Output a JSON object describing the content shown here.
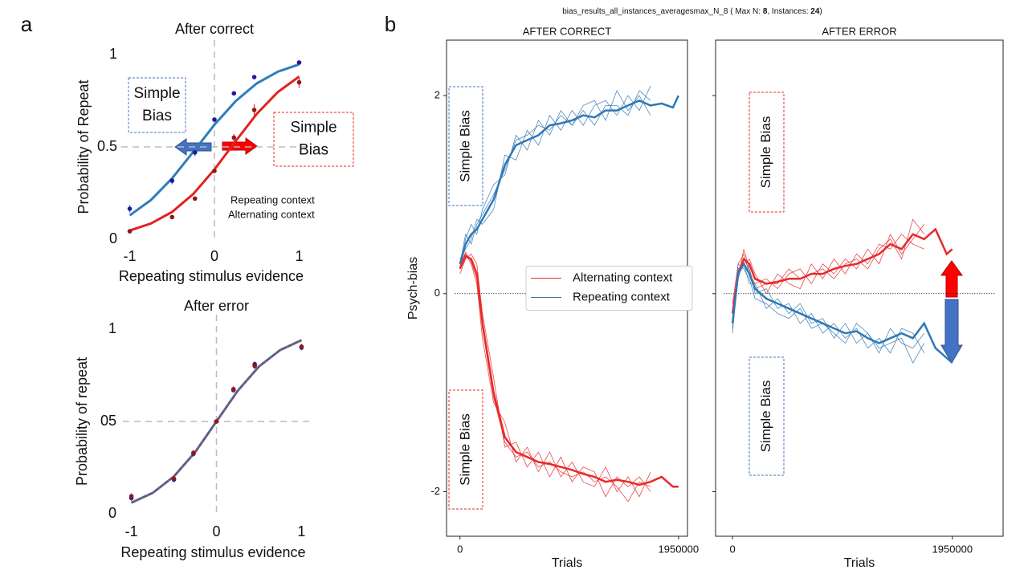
{
  "panel_labels": [
    "a",
    "b"
  ],
  "figure_b_header": {
    "parts": [
      "bias_results_all_instances_averagesmax_N_8 ( Max N: ",
      8,
      ", Instances: ",
      24,
      ")"
    ]
  },
  "chart_data": [
    {
      "type": "line",
      "title": "After correct",
      "xlabel": "Repeating stimulus evidence",
      "ylabel": "Probability of Repeat",
      "xlim": [
        -1.1,
        1.1
      ],
      "ylim": [
        0,
        1
      ],
      "xticks": [
        -1,
        0,
        1
      ],
      "yticks": [
        0,
        0.5,
        1
      ],
      "ref_lines": {
        "x": 0,
        "y": 0.5
      },
      "legend": "lower right",
      "x": [
        -1,
        -0.5,
        -0.23,
        0,
        0.23,
        0.47,
        1
      ],
      "fit_x": [
        -1,
        -0.75,
        -0.5,
        -0.25,
        0,
        0.25,
        0.5,
        0.75,
        1
      ],
      "series": [
        {
          "name": "Repeating context",
          "color": "#2e7ebc",
          "marker_color": "#1c1c9c",
          "values": [
            0.165,
            0.317,
            0.47,
            0.648,
            0.79,
            0.878,
            0.957
          ],
          "errors": [
            0.02,
            0.02,
            0.02,
            0.01,
            0.01,
            0.01,
            0.01
          ],
          "fit": [
            0.129,
            0.212,
            0.33,
            0.473,
            0.62,
            0.748,
            0.844,
            0.908,
            0.947
          ]
        },
        {
          "name": "Alternating context",
          "color": "#e3221f",
          "marker_color": "#8b1a1a",
          "values": [
            0.043,
            0.12,
            0.22,
            0.37,
            0.55,
            0.7,
            0.85
          ],
          "errors": [
            0.01,
            0.01,
            0.01,
            0.01,
            0.02,
            0.03,
            0.03
          ],
          "fit": [
            0.047,
            0.085,
            0.148,
            0.245,
            0.378,
            0.531,
            0.679,
            0.798,
            0.881
          ]
        }
      ],
      "annotations": [
        {
          "lines": [
            "Simple",
            "Bias"
          ],
          "color": "#4472c4"
        },
        {
          "lines": [
            "Simple",
            "Bias"
          ],
          "color": "#e8292a"
        }
      ]
    },
    {
      "type": "line",
      "title": "After error",
      "xlabel": "Repeating stimulus evidence",
      "ylabel": "Probability of repeat",
      "xlim": [
        -1.1,
        1.1
      ],
      "ylim": [
        0,
        1
      ],
      "xticks": [
        -1,
        0,
        1
      ],
      "yticks": [
        0,
        {
          "value": 0.5,
          "label": "05"
        },
        1
      ],
      "ref_lines": {
        "x": 0,
        "y": 0.5
      },
      "x": [
        -1,
        -0.5,
        -0.27,
        0,
        0.2,
        0.45,
        1
      ],
      "fit_x": [
        -1,
        -0.75,
        -0.5,
        -0.25,
        0,
        0.25,
        0.5,
        0.75,
        1
      ],
      "series": [
        {
          "color": "#2e7ebc",
          "marker_color": "#1c1c9c",
          "values": [
            0.085,
            0.185,
            0.325,
            0.5,
            0.67,
            0.81,
            0.9
          ],
          "errors": [
            0.015,
            0.015,
            0.015,
            0.01,
            0.015,
            0.015,
            0.015
          ],
          "fit": [
            0.06,
            0.113,
            0.202,
            0.334,
            0.5,
            0.666,
            0.798,
            0.887,
            0.94
          ]
        },
        {
          "color": "#e3221f",
          "marker_color": "#8b1a1a",
          "line_style": "dashed",
          "values": [
            0.095,
            0.19,
            0.33,
            0.5,
            0.675,
            0.8,
            0.905
          ],
          "errors": [
            0.015,
            0.015,
            0.015,
            0.01,
            0.015,
            0.015,
            0.015
          ],
          "fit": [
            0.06,
            0.113,
            0.202,
            0.334,
            0.5,
            0.666,
            0.798,
            0.887,
            0.94
          ]
        }
      ]
    },
    {
      "type": "line",
      "title": "AFTER CORRECT",
      "xlabel": "Trials",
      "ylabel": "Psych-bias",
      "xlim": [
        -120000,
        2030000
      ],
      "ylim": [
        -2.45,
        2.56
      ],
      "xticks": [
        0,
        1950000
      ],
      "yticks": [
        -2,
        0,
        2
      ],
      "hline": 0,
      "legend": "center right",
      "x": [
        0,
        50000,
        100000,
        150000,
        200000,
        300000,
        400000,
        500000,
        600000,
        700000,
        800000,
        900000,
        1000000,
        1100000,
        1200000,
        1300000,
        1400000,
        1500000,
        1600000,
        1700000,
        1800000,
        1900000,
        1950000
      ],
      "series": [
        {
          "name": "Alternating context",
          "color": "#e8292a",
          "values": [
            0.25,
            0.38,
            0.35,
            0.2,
            -0.3,
            -1.0,
            -1.45,
            -1.6,
            -1.65,
            -1.7,
            -1.72,
            -1.75,
            -1.78,
            -1.82,
            -1.85,
            -1.9,
            -1.88,
            -1.9,
            -1.93,
            -1.9,
            -1.85,
            -1.95,
            -1.95
          ],
          "instances": [
            [
              0.3,
              0.4,
              0.3,
              0.1,
              -0.45,
              -1.1,
              -1.3,
              -1.7,
              -1.55,
              -1.8,
              -1.6,
              -1.85,
              -1.7,
              -1.9,
              -1.95,
              -1.75,
              -2.0,
              -1.85,
              -2.05,
              -1.8,
              null,
              null,
              null
            ],
            [
              0.2,
              0.35,
              0.4,
              0.3,
              -0.2,
              -0.85,
              -1.55,
              -1.5,
              -1.75,
              -1.6,
              -1.85,
              -1.65,
              -1.9,
              -1.75,
              -1.8,
              -2.05,
              -1.85,
              -1.95,
              -1.85,
              -2.0,
              null,
              null,
              null
            ],
            [
              0.28,
              0.42,
              0.32,
              0.15,
              -0.35,
              -1.05,
              -1.5,
              -1.65,
              -1.6,
              -1.75,
              -1.7,
              -1.8,
              -1.85,
              -1.8,
              -1.9,
              -1.85,
              -1.95,
              -2.1,
              -1.9,
              -1.95,
              null,
              null,
              null
            ]
          ]
        },
        {
          "name": "Repeating context",
          "color": "#2f78b4",
          "values": [
            0.3,
            0.5,
            0.6,
            0.65,
            0.75,
            0.95,
            1.3,
            1.5,
            1.55,
            1.6,
            1.7,
            1.72,
            1.75,
            1.8,
            1.78,
            1.85,
            1.85,
            1.9,
            1.95,
            1.9,
            1.92,
            1.88,
            2.0
          ],
          "instances": [
            [
              0.25,
              0.55,
              0.7,
              0.6,
              0.85,
              1.1,
              1.2,
              1.6,
              1.45,
              1.75,
              1.6,
              1.85,
              1.7,
              1.9,
              1.95,
              1.75,
              2.05,
              1.85,
              2.0,
              1.8,
              null,
              null,
              null
            ],
            [
              0.35,
              0.45,
              0.55,
              0.75,
              0.7,
              0.85,
              1.4,
              1.35,
              1.65,
              1.5,
              1.8,
              1.65,
              1.85,
              1.7,
              1.9,
              1.95,
              1.8,
              2.0,
              1.85,
              2.1,
              null,
              null,
              null
            ],
            [
              0.3,
              0.6,
              0.5,
              0.7,
              0.8,
              1.0,
              1.25,
              1.55,
              1.6,
              1.7,
              1.65,
              1.8,
              1.7,
              1.85,
              1.7,
              1.9,
              1.9,
              1.8,
              2.05,
              1.95,
              null,
              null,
              null
            ]
          ]
        }
      ],
      "annotations": [
        {
          "text": "Simple Bias",
          "color": "#4472c4"
        },
        {
          "text": "Simple Bias",
          "color": "#e8292a"
        }
      ]
    },
    {
      "type": "line",
      "title": "AFTER ERROR",
      "xlabel": "Trials",
      "xlim": [
        -150000,
        2400000
      ],
      "ylim": [
        -2.45,
        2.56
      ],
      "xticks": [
        0,
        1950000
      ],
      "yticks": [
        -2,
        0,
        2
      ],
      "show_ytick_labels": false,
      "hline": 0,
      "x": [
        0,
        50000,
        100000,
        150000,
        200000,
        300000,
        400000,
        500000,
        600000,
        700000,
        800000,
        900000,
        1000000,
        1100000,
        1200000,
        1300000,
        1400000,
        1500000,
        1600000,
        1700000,
        1800000,
        1900000,
        1950000
      ],
      "series": [
        {
          "color": "#e8292a",
          "values": [
            -0.2,
            0.2,
            0.35,
            0.3,
            0.15,
            0.1,
            0.12,
            0.15,
            0.15,
            0.2,
            0.2,
            0.25,
            0.28,
            0.3,
            0.35,
            0.4,
            0.5,
            0.45,
            0.6,
            0.55,
            0.65,
            0.4,
            0.45
          ],
          "instances": [
            [
              -0.1,
              0.3,
              0.4,
              0.2,
              0.1,
              0.15,
              0.05,
              0.2,
              0.25,
              0.1,
              0.3,
              0.2,
              0.35,
              0.25,
              0.45,
              0.3,
              0.6,
              0.4,
              0.55,
              0.7,
              null,
              null,
              null
            ],
            [
              -0.3,
              0.25,
              0.3,
              0.35,
              0.2,
              0.0,
              0.2,
              0.1,
              0.05,
              0.3,
              0.15,
              0.35,
              0.2,
              0.4,
              0.3,
              0.5,
              0.45,
              0.6,
              0.5,
              0.45,
              null,
              null,
              null
            ],
            [
              -0.2,
              0.15,
              0.45,
              0.25,
              0.05,
              0.1,
              0.1,
              0.25,
              0.15,
              0.2,
              0.25,
              0.15,
              0.3,
              0.35,
              0.25,
              0.45,
              0.55,
              0.35,
              0.75,
              0.6,
              null,
              null,
              null
            ]
          ]
        },
        {
          "color": "#2f78b4",
          "values": [
            -0.3,
            0.2,
            0.3,
            0.2,
            0.05,
            -0.05,
            -0.1,
            -0.15,
            -0.2,
            -0.25,
            -0.3,
            -0.35,
            -0.4,
            -0.38,
            -0.45,
            -0.5,
            -0.45,
            -0.4,
            -0.45,
            -0.3,
            -0.55,
            -0.65,
            -0.7
          ],
          "instances": [
            [
              -0.4,
              0.25,
              0.3,
              0.1,
              0.1,
              -0.15,
              -0.05,
              -0.2,
              -0.1,
              -0.3,
              -0.25,
              -0.45,
              -0.3,
              -0.5,
              -0.4,
              -0.6,
              -0.35,
              -0.5,
              -0.55,
              -0.4,
              null,
              null,
              null
            ],
            [
              -0.2,
              0.15,
              0.35,
              0.25,
              0.0,
              0.05,
              -0.15,
              -0.1,
              -0.3,
              -0.2,
              -0.4,
              -0.3,
              -0.45,
              -0.35,
              -0.55,
              -0.45,
              -0.6,
              -0.35,
              -0.4,
              -0.6,
              null,
              null,
              null
            ],
            [
              -0.35,
              0.3,
              0.25,
              0.15,
              -0.05,
              -0.1,
              -0.2,
              -0.25,
              -0.15,
              -0.35,
              -0.3,
              -0.4,
              -0.5,
              -0.3,
              -0.4,
              -0.55,
              -0.5,
              -0.45,
              -0.7,
              -0.5,
              null,
              null,
              null
            ]
          ]
        }
      ],
      "annotations": [
        {
          "text": "Simple Bias",
          "color": "#e8292a"
        },
        {
          "text": "Simple Bias",
          "color": "#4472c4"
        }
      ]
    }
  ]
}
